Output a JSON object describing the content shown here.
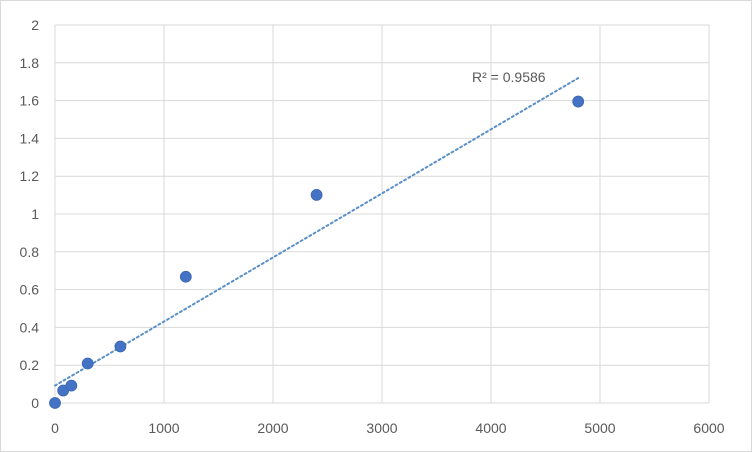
{
  "chart_data": {
    "type": "scatter",
    "title": "",
    "xlabel": "",
    "ylabel": "",
    "xlim": [
      0,
      6000
    ],
    "ylim": [
      0,
      2
    ],
    "x_ticks": [
      0,
      1000,
      2000,
      3000,
      4000,
      5000,
      6000
    ],
    "y_ticks": [
      0,
      0.2,
      0.4,
      0.6,
      0.8,
      1,
      1.2,
      1.4,
      1.6,
      1.8,
      2
    ],
    "x_tick_labels": [
      "0",
      "1000",
      "2000",
      "3000",
      "4000",
      "5000",
      "6000"
    ],
    "y_tick_labels": [
      "0",
      "0.2",
      "0.4",
      "0.6",
      "0.8",
      "1",
      "1.2",
      "1.4",
      "1.6",
      "1.8",
      "2"
    ],
    "grid": true,
    "legend": "none",
    "series": [
      {
        "x": [
          0,
          75,
          150,
          300,
          600,
          1200,
          2400,
          4800
        ],
        "y": [
          0.0,
          0.066,
          0.092,
          0.209,
          0.299,
          0.668,
          1.101,
          1.595
        ],
        "color": "#4472c4"
      }
    ],
    "trendline": {
      "type": "linear",
      "style": "dotted",
      "color": "#5b8fc7",
      "x_range": [
        0,
        4800
      ],
      "intercept": 0.092,
      "slope": 0.000339,
      "r_squared_label": "R² = 0.9586"
    }
  }
}
